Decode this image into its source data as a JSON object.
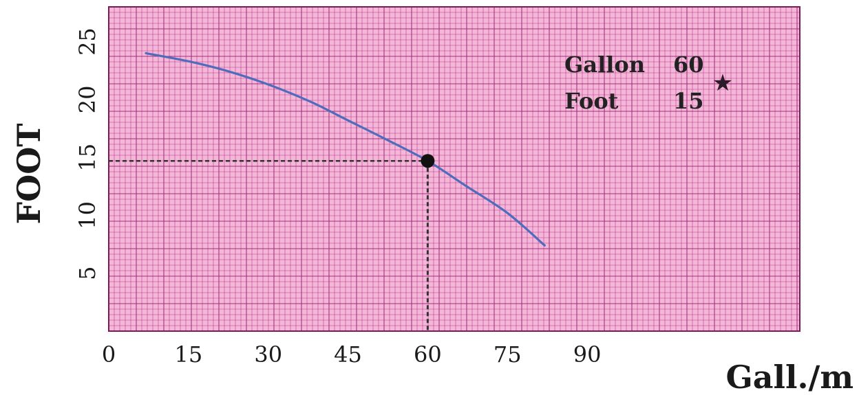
{
  "chart_data": {
    "type": "line",
    "xlabel": "Gall./m",
    "ylabel": "FOOT",
    "xlim": [
      0,
      130
    ],
    "ylim": [
      0,
      28
    ],
    "x_ticks": [
      "0",
      "15",
      "30",
      "45",
      "60",
      "75",
      "90"
    ],
    "x_tick_values": [
      0,
      15,
      30,
      45,
      60,
      75,
      90
    ],
    "y_ticks": [
      "5",
      "10",
      "15",
      "20",
      "25"
    ],
    "y_tick_values": [
      5,
      10,
      15,
      20,
      25
    ],
    "grid": true,
    "series": [
      {
        "x": [
          7,
          15,
          22,
          30,
          38,
          45,
          52,
          60,
          67,
          75,
          82
        ],
        "y": [
          24,
          23.3,
          22.5,
          21.3,
          19.8,
          18.2,
          16.6,
          14.7,
          12.6,
          10.2,
          7.4
        ]
      }
    ],
    "highlight_point": {
      "x": 60,
      "y": 14.7
    },
    "annotations": [
      {
        "label": "Gallon",
        "value": "60"
      },
      {
        "label": "Foot",
        "value": "15"
      }
    ],
    "marker_symbol": "★"
  },
  "colors": {
    "plot_background": "#f2b8d8",
    "grid_minor": "#c21d86",
    "grid_major": "#a01470",
    "curve": "#4f6cbc",
    "point": "#111111",
    "guide_line": "#333333"
  }
}
